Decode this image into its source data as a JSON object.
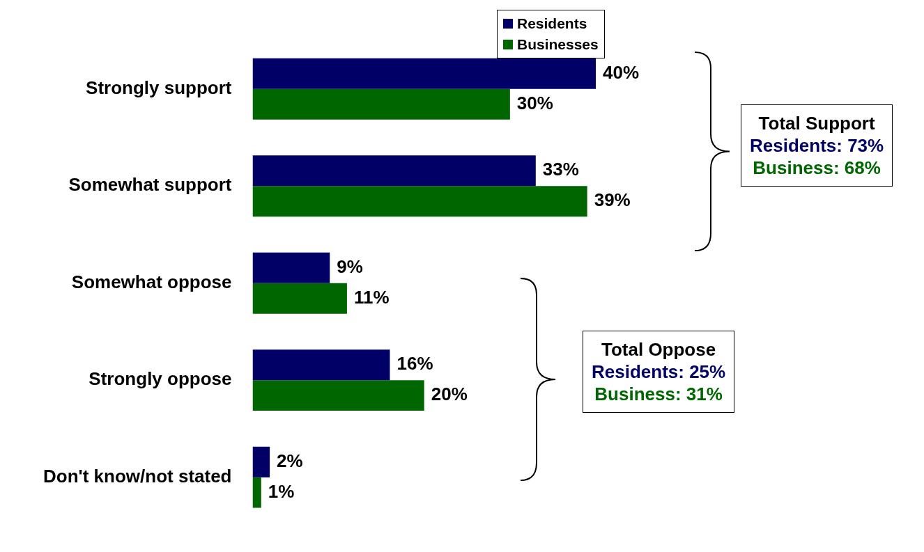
{
  "chart_data": {
    "type": "bar",
    "orientation": "horizontal",
    "legend": "top",
    "categories": [
      "Strongly support",
      "Somewhat support",
      "Somewhat oppose",
      "Strongly oppose",
      "Don't know/not stated"
    ],
    "series": [
      {
        "name": "Residents",
        "color": "#000066",
        "values": [
          40,
          33,
          9,
          16,
          2
        ],
        "value_labels": [
          "40%",
          "33%",
          "9%",
          "16%",
          "2%"
        ]
      },
      {
        "name": "Businesses",
        "color": "#006600",
        "values": [
          30,
          39,
          11,
          20,
          1
        ],
        "value_labels": [
          "30%",
          "39%",
          "11%",
          "20%",
          "1%"
        ]
      }
    ],
    "annotations": [
      "Total Support",
      "Residents: 73%",
      "Business: 68%",
      "Total Oppose",
      "Residents: 25%",
      "Business: 31%"
    ]
  }
}
